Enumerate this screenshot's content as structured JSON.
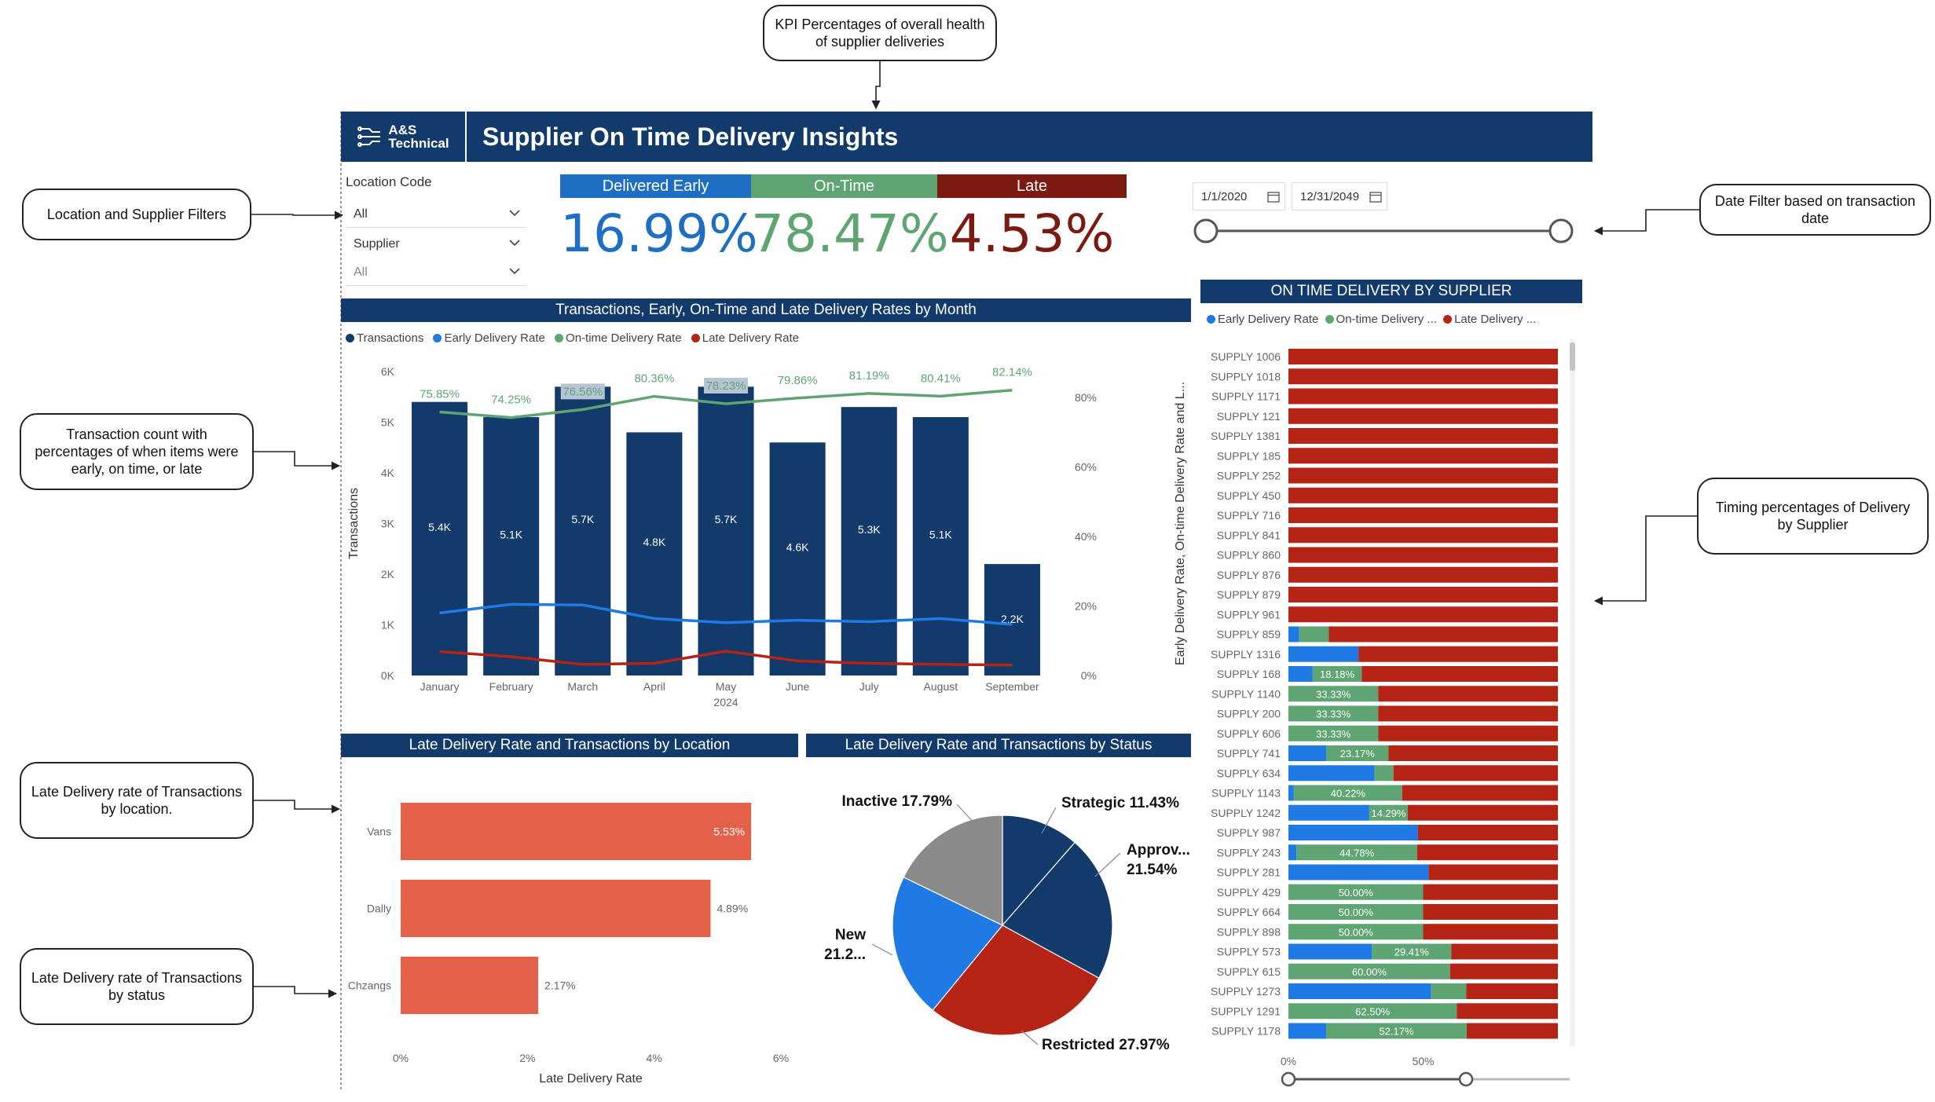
{
  "callouts": {
    "kpi": "KPI Percentages of overall health of supplier deliveries",
    "filters": "Location and Supplier Filters",
    "transactions": "Transaction count with percentages of when items were early, on time, or late",
    "late_location": "Late Delivery rate of Transactions by location.",
    "late_status": "Late Delivery rate of Transactions by status",
    "date_filter": "Date Filter based on transaction date",
    "timing_supplier": "Timing percentages of Delivery by Supplier"
  },
  "header": {
    "logo_line1": "A&S",
    "logo_line2": "Technical",
    "title": "Supplier On Time Delivery Insights"
  },
  "filters": {
    "location_label": "Location Code",
    "location_value": "All",
    "supplier_label": "Supplier",
    "supplier_value": "All"
  },
  "kpis": [
    {
      "label": "Delivered Early",
      "value": "16.99%",
      "head_color": "#1e6fc4",
      "value_color": "#1e6fc4"
    },
    {
      "label": "On-Time",
      "value": "78.47%",
      "head_color": "#5fa574",
      "value_color": "#5fa574"
    },
    {
      "label": "Late",
      "value": "4.53%",
      "head_color": "#7a1a10",
      "value_color": "#7a1a10"
    }
  ],
  "date_filter": {
    "start": "1/1/2020",
    "end": "12/31/2049"
  },
  "colors": {
    "navy": "#123a6b",
    "early": "#1f7ae6",
    "ontime": "#5fa574",
    "late": "#b52414",
    "location_bar": "#e3604a",
    "inactive": "#8a8a8a"
  },
  "chart_data": [
    {
      "id": "monthly",
      "type": "bar",
      "title": "Transactions, Early, On-Time and Late Delivery Rates by Month",
      "legend": [
        "Transactions",
        "Early Delivery Rate",
        "On-time Delivery Rate",
        "Late Delivery Rate"
      ],
      "categories": [
        "January",
        "February",
        "March",
        "April",
        "May",
        "June",
        "July",
        "August",
        "September"
      ],
      "year_label": "2024",
      "ylabel": "Transactions",
      "y2label": "Early Delivery Rate, On-time Delivery Rate and L...",
      "y_ticks": [
        "0K",
        "1K",
        "2K",
        "3K",
        "4K",
        "5K",
        "6K"
      ],
      "y2_ticks": [
        "0%",
        "20%",
        "40%",
        "60%",
        "80%"
      ],
      "ylim": [
        0,
        6000
      ],
      "y2lim": [
        0,
        0.875
      ],
      "series": [
        {
          "name": "Transactions",
          "values": [
            5400,
            5100,
            5700,
            4800,
            5700,
            4600,
            5300,
            5100,
            2200
          ],
          "labels": [
            "5.4K",
            "5.1K",
            "5.7K",
            "4.8K",
            "5.7K",
            "4.6K",
            "5.3K",
            "5.1K",
            "2.2K"
          ]
        },
        {
          "name": "Early Delivery Rate",
          "values": [
            0.18,
            0.205,
            0.203,
            0.164,
            0.152,
            0.159,
            0.155,
            0.164,
            0.147
          ]
        },
        {
          "name": "On-time Delivery Rate",
          "values": [
            0.7585,
            0.7425,
            0.7656,
            0.8036,
            0.7823,
            0.7986,
            0.8119,
            0.8041,
            0.8214
          ],
          "labels": [
            "75.85%",
            "74.25%",
            "76.56%",
            "80.36%",
            "78.23%",
            "79.86%",
            "81.19%",
            "80.41%",
            "82.14%"
          ]
        },
        {
          "name": "Late Delivery Rate",
          "values": [
            0.069,
            0.054,
            0.032,
            0.035,
            0.07,
            0.042,
            0.035,
            0.032,
            0.03
          ]
        }
      ]
    },
    {
      "id": "location",
      "type": "bar",
      "title": "Late Delivery Rate and Transactions by Location",
      "categories": [
        "Vans",
        "Dally",
        "Chzangs"
      ],
      "values": [
        5.53,
        4.89,
        2.17
      ],
      "labels": [
        "5.53%",
        "4.89%",
        "2.17%"
      ],
      "xlabel": "Late Delivery Rate",
      "x_ticks": [
        "0%",
        "2%",
        "4%",
        "6%"
      ],
      "xlim": [
        0,
        6
      ]
    },
    {
      "id": "status",
      "type": "pie",
      "title": "Late Delivery Rate and Transactions by Status",
      "slices": [
        {
          "name": "Strategic",
          "value": 11.43,
          "color": "#123a6b",
          "label1": "Strategic 11.43%",
          "label2": ""
        },
        {
          "name": "Approv...",
          "value": 21.54,
          "color": "#123a6b",
          "label1": "Approv...",
          "label2": "21.54%"
        },
        {
          "name": "Restricted",
          "value": 27.97,
          "color": "#b52414",
          "label1": "Restricted 27.97%",
          "label2": ""
        },
        {
          "name": "New",
          "value": 21.27,
          "color": "#1f7ae6",
          "label1": "New",
          "label2": "21.2..."
        },
        {
          "name": "Inactive",
          "value": 17.79,
          "color": "#8a8a8a",
          "label1": "Inactive 17.79%",
          "label2": ""
        }
      ]
    },
    {
      "id": "supplier",
      "type": "bar",
      "title": "ON TIME DELIVERY BY SUPPLIER",
      "legend": [
        "Early Delivery Rate",
        "On-time Delivery ...",
        "Late Delivery ..."
      ],
      "x_ticks": [
        "0%",
        "50%"
      ],
      "suppliers": [
        {
          "name": "SUPPLY 1006",
          "early": 0,
          "ontime": 0,
          "label": ""
        },
        {
          "name": "SUPPLY 1018",
          "early": 0,
          "ontime": 0,
          "label": ""
        },
        {
          "name": "SUPPLY 1171",
          "early": 0,
          "ontime": 0,
          "label": ""
        },
        {
          "name": "SUPPLY 121",
          "early": 0,
          "ontime": 0,
          "label": ""
        },
        {
          "name": "SUPPLY 1381",
          "early": 0,
          "ontime": 0,
          "label": ""
        },
        {
          "name": "SUPPLY 185",
          "early": 0,
          "ontime": 0,
          "label": ""
        },
        {
          "name": "SUPPLY 252",
          "early": 0,
          "ontime": 0,
          "label": ""
        },
        {
          "name": "SUPPLY 450",
          "early": 0,
          "ontime": 0,
          "label": ""
        },
        {
          "name": "SUPPLY 716",
          "early": 0,
          "ontime": 0,
          "label": ""
        },
        {
          "name": "SUPPLY 841",
          "early": 0,
          "ontime": 0,
          "label": ""
        },
        {
          "name": "SUPPLY 860",
          "early": 0,
          "ontime": 0,
          "label": ""
        },
        {
          "name": "SUPPLY 876",
          "early": 0,
          "ontime": 0,
          "label": ""
        },
        {
          "name": "SUPPLY 879",
          "early": 0,
          "ontime": 0,
          "label": ""
        },
        {
          "name": "SUPPLY 961",
          "early": 0,
          "ontime": 0,
          "label": ""
        },
        {
          "name": "SUPPLY 859",
          "early": 4,
          "ontime": 11,
          "label": ""
        },
        {
          "name": "SUPPLY 1316",
          "early": 26,
          "ontime": 0,
          "label": ""
        },
        {
          "name": "SUPPLY 168",
          "early": 9,
          "ontime": 18.18,
          "label": "18.18%"
        },
        {
          "name": "SUPPLY 1140",
          "early": 0,
          "ontime": 33.33,
          "label": "33.33%"
        },
        {
          "name": "SUPPLY 200",
          "early": 0,
          "ontime": 33.33,
          "label": "33.33%"
        },
        {
          "name": "SUPPLY 606",
          "early": 0,
          "ontime": 33.33,
          "label": "33.33%"
        },
        {
          "name": "SUPPLY 741",
          "early": 14,
          "ontime": 23.17,
          "label": "23.17%"
        },
        {
          "name": "SUPPLY 634",
          "early": 32,
          "ontime": 7,
          "label": ""
        },
        {
          "name": "SUPPLY 1143",
          "early": 2,
          "ontime": 40.22,
          "label": "40.22%"
        },
        {
          "name": "SUPPLY 1242",
          "early": 30,
          "ontime": 14.29,
          "label": "14.29%"
        },
        {
          "name": "SUPPLY 987",
          "early": 48,
          "ontime": 0,
          "label": ""
        },
        {
          "name": "SUPPLY 243",
          "early": 3,
          "ontime": 44.78,
          "label": "44.78%"
        },
        {
          "name": "SUPPLY 281",
          "early": 52,
          "ontime": 0,
          "label": ""
        },
        {
          "name": "SUPPLY 429",
          "early": 0,
          "ontime": 50.0,
          "label": "50.00%"
        },
        {
          "name": "SUPPLY 664",
          "early": 0,
          "ontime": 50.0,
          "label": "50.00%"
        },
        {
          "name": "SUPPLY 898",
          "early": 0,
          "ontime": 50.0,
          "label": "50.00%"
        },
        {
          "name": "SUPPLY 573",
          "early": 31,
          "ontime": 29.41,
          "label": "29.41%"
        },
        {
          "name": "SUPPLY 615",
          "early": 0,
          "ontime": 60.0,
          "label": "60.00%"
        },
        {
          "name": "SUPPLY 1273",
          "early": 53,
          "ontime": 13,
          "label": ""
        },
        {
          "name": "SUPPLY 1291",
          "early": 0,
          "ontime": 62.5,
          "label": "62.50%"
        },
        {
          "name": "SUPPLY 1178",
          "early": 14,
          "ontime": 52.17,
          "label": "52.17%"
        }
      ]
    }
  ]
}
